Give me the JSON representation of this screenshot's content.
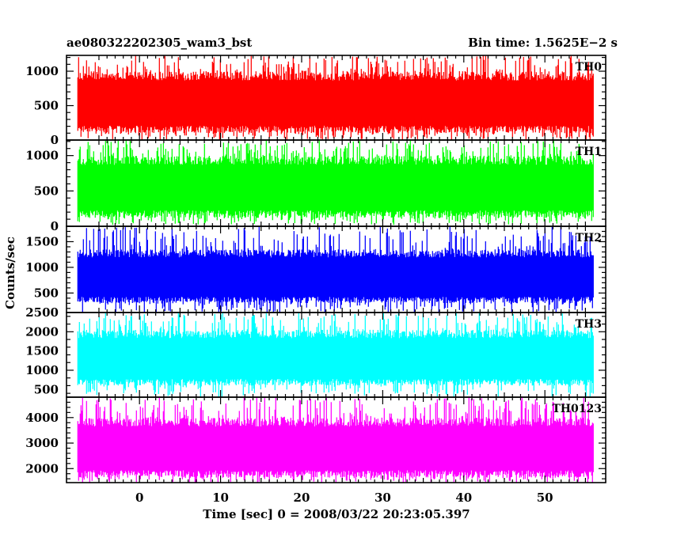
{
  "header": {
    "left": "ae080322202305_wam3_bst",
    "right": "Bin time: 1.5625E−2 s"
  },
  "chart_data": {
    "type": "line",
    "title": "ae080322202305_wam3_bst",
    "subtitle": "Bin time: 1.5625E−2 s",
    "xlabel": "Time [sec] 0 = 2008/03/22 20:23:05.397",
    "ylabel": "Counts/sec",
    "xlim": [
      -9,
      57.5
    ],
    "x_data_range": [
      -7.6,
      56
    ],
    "x_ticks": [
      0,
      10,
      20,
      30,
      40,
      50
    ],
    "grid": false,
    "panels": [
      {
        "name": "TH0",
        "color": "#ff0000",
        "ylim": [
          0,
          1230
        ],
        "y_ticks": [
          0,
          500,
          1000
        ],
        "band": {
          "base_low": 100,
          "base_high": 1000,
          "dip_min": 0,
          "spike_max": 1230
        }
      },
      {
        "name": "TH1",
        "color": "#00ff00",
        "ylim": [
          0,
          1220
        ],
        "y_ticks": [
          0,
          500,
          1000
        ],
        "band": {
          "base_low": 120,
          "base_high": 1000,
          "dip_min": 20,
          "spike_max": 1220
        }
      },
      {
        "name": "TH2",
        "color": "#0000ff",
        "ylim": [
          120,
          1800
        ],
        "y_ticks": [
          500,
          1000,
          1500
        ],
        "band": {
          "base_low": 300,
          "base_high": 1350,
          "dip_min": 120,
          "spike_max": 1800
        }
      },
      {
        "name": "TH3",
        "color": "#00ffff",
        "ylim": [
          300,
          2500
        ],
        "y_ticks": [
          500,
          1000,
          1500,
          2000,
          2500
        ],
        "band": {
          "base_low": 600,
          "base_high": 2050,
          "dip_min": 300,
          "spike_max": 2500
        }
      },
      {
        "name": "TH0123",
        "color": "#ff00ff",
        "ylim": [
          1450,
          4800
        ],
        "y_ticks": [
          2000,
          3000,
          4000
        ],
        "band": {
          "base_low": 1650,
          "base_high": 4000,
          "dip_min": 1450,
          "spike_max": 4800
        }
      }
    ]
  }
}
